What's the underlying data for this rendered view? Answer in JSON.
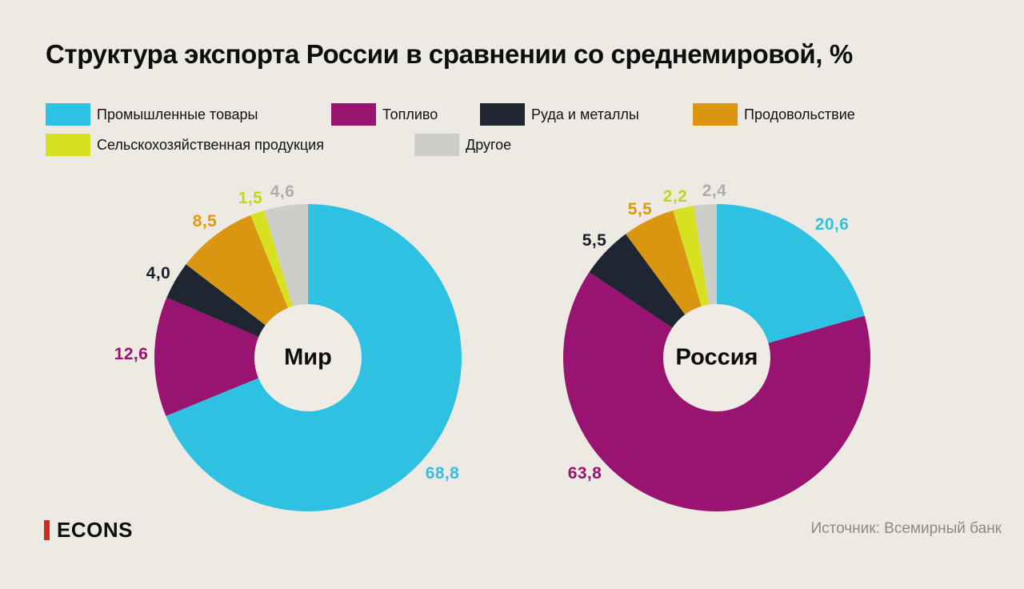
{
  "title": "Структура экспорта России в сравнении со среднемировой, %",
  "legend": [
    {
      "label": "Промышленные товары",
      "color": "#2FC1E1"
    },
    {
      "label": "Топливо",
      "color": "#991371"
    },
    {
      "label": "Руда и металлы",
      "color": "#1F2631"
    },
    {
      "label": "Продовольствие",
      "color": "#DA9511"
    },
    {
      "label": "Сельскохозяйственная продукция",
      "color": "#D7E122"
    },
    {
      "label": "Другое",
      "color": "#CDCDCA"
    }
  ],
  "chart_data": [
    {
      "type": "pie",
      "style": "donut",
      "title": "Мир",
      "unit": "%",
      "legend_position": "top",
      "slices": [
        {
          "category": "Промышленные товары",
          "value": 68.8,
          "label": "68,8",
          "color": "#2FC1E1",
          "label_color": "#35BEDE"
        },
        {
          "category": "Топливо",
          "value": 12.6,
          "label": "12,6",
          "color": "#991371",
          "label_color": "#98146F"
        },
        {
          "category": "Руда и металлы",
          "value": 4.0,
          "label": "4,0",
          "color": "#1F2631",
          "label_color": "#19202B"
        },
        {
          "category": "Продовольствие",
          "value": 8.5,
          "label": "8,5",
          "color": "#DA9511",
          "label_color": "#DC9913"
        },
        {
          "category": "Сельскохозяйственная продукция",
          "value": 1.5,
          "label": "1,5",
          "color": "#D7E122",
          "label_color": "#C6D31B"
        },
        {
          "category": "Другое",
          "value": 4.6,
          "label": "4,6",
          "color": "#CDCDCA",
          "label_color": "#ADADAA"
        }
      ]
    },
    {
      "type": "pie",
      "style": "donut",
      "title": "Россия",
      "unit": "%",
      "legend_position": "top",
      "slices": [
        {
          "category": "Промышленные товары",
          "value": 20.6,
          "label": "20,6",
          "color": "#2FC1E1",
          "label_color": "#35BEDE"
        },
        {
          "category": "Топливо",
          "value": 63.8,
          "label": "63,8",
          "color": "#991371",
          "label_color": "#98146F"
        },
        {
          "category": "Руда и металлы",
          "value": 5.5,
          "label": "5,5",
          "color": "#1F2631",
          "label_color": "#19202B"
        },
        {
          "category": "Продовольствие",
          "value": 5.5,
          "label": "5,5",
          "color": "#DA9511",
          "label_color": "#DC9913"
        },
        {
          "category": "Сельскохозяйственная продукция",
          "value": 2.2,
          "label": "2,2",
          "color": "#D7E122",
          "label_color": "#C6D31B"
        },
        {
          "category": "Другое",
          "value": 2.4,
          "label": "2,4",
          "color": "#CDCDCA",
          "label_color": "#ADADAA"
        }
      ]
    }
  ],
  "footer": {
    "logo": "ECONS",
    "source": "Источник: Всемирный банк"
  },
  "colors": {
    "background": "#EDEAE3",
    "donut_hole": "#EFECE6",
    "title_text": "#0D0D0D",
    "legend_text": "#121212",
    "source_text": "#8E8A83",
    "logo_red": "#D2291F"
  }
}
